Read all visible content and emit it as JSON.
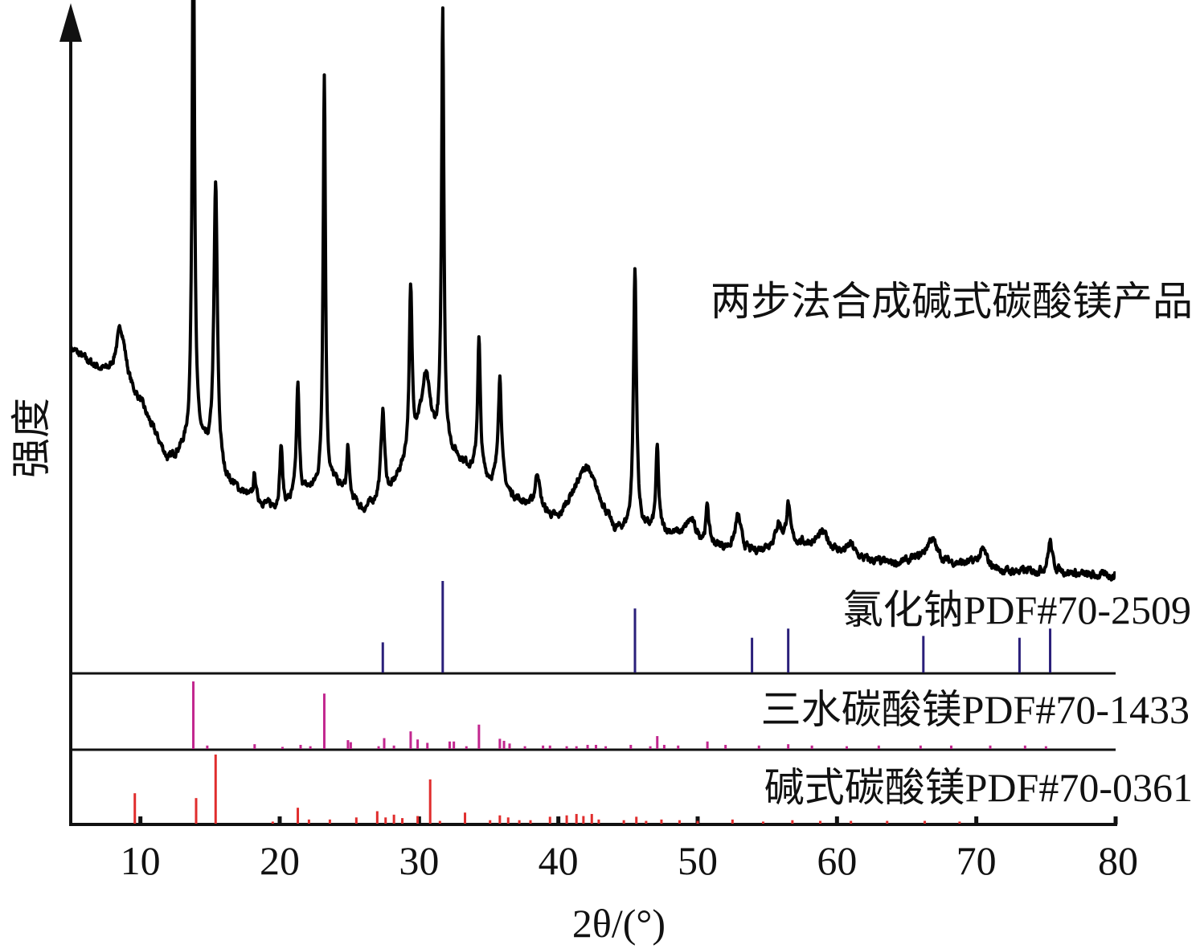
{
  "chart_data": {
    "type": "line",
    "xlabel": "2θ/(°)",
    "ylabel": "强度",
    "xlim": [
      5,
      80
    ],
    "x_ticks": [
      "10",
      "20",
      "30",
      "40",
      "50",
      "60",
      "70",
      "80"
    ],
    "grid": false,
    "colors": {
      "axis": "#111111",
      "product": "#000000",
      "nacl": "#2a1f7a",
      "trihydrate": "#c2278f",
      "basic": "#e02d2d"
    },
    "product": {
      "name": "两步法合成碱式碳酸镁产品",
      "baseline": [
        [
          5,
          60
        ],
        [
          7,
          54
        ],
        [
          10,
          45
        ],
        [
          12,
          30
        ],
        [
          14,
          36
        ],
        [
          16,
          25
        ],
        [
          18,
          20
        ],
        [
          20,
          17
        ],
        [
          22,
          22
        ],
        [
          24,
          24
        ],
        [
          26,
          17
        ],
        [
          28,
          22
        ],
        [
          30,
          37
        ],
        [
          32,
          33
        ],
        [
          34,
          27
        ],
        [
          36,
          22
        ],
        [
          38,
          18
        ],
        [
          40,
          15
        ],
        [
          42,
          29
        ],
        [
          44,
          12
        ],
        [
          46,
          12
        ],
        [
          48,
          11
        ],
        [
          50,
          9
        ],
        [
          52,
          7
        ],
        [
          54,
          6
        ],
        [
          56,
          9
        ],
        [
          58,
          8
        ],
        [
          60,
          6
        ],
        [
          62,
          4
        ],
        [
          64,
          3
        ],
        [
          66,
          4
        ],
        [
          68,
          3
        ],
        [
          70,
          3
        ],
        [
          72,
          1
        ],
        [
          74,
          1
        ],
        [
          76,
          1
        ],
        [
          78,
          0
        ],
        [
          80,
          0
        ]
      ],
      "peaks": [
        {
          "x": 8.6,
          "h": 16,
          "w": 0.45
        },
        {
          "x": 13.8,
          "h": 147,
          "w": 0.1
        },
        {
          "x": 15.4,
          "h": 75,
          "w": 0.15
        },
        {
          "x": 18.2,
          "h": 7,
          "w": 0.1
        },
        {
          "x": 20.1,
          "h": 17,
          "w": 0.12
        },
        {
          "x": 21.3,
          "h": 30,
          "w": 0.12
        },
        {
          "x": 23.2,
          "h": 110,
          "w": 0.1
        },
        {
          "x": 24.9,
          "h": 13,
          "w": 0.1
        },
        {
          "x": 27.4,
          "h": 23,
          "w": 0.15
        },
        {
          "x": 29.4,
          "h": 42,
          "w": 0.12
        },
        {
          "x": 30.5,
          "h": 16,
          "w": 0.35
        },
        {
          "x": 31.7,
          "h": 115,
          "w": 0.1
        },
        {
          "x": 34.3,
          "h": 36,
          "w": 0.12
        },
        {
          "x": 35.8,
          "h": 30,
          "w": 0.15
        },
        {
          "x": 38.5,
          "h": 10,
          "w": 0.2
        },
        {
          "x": 45.5,
          "h": 69,
          "w": 0.13
        },
        {
          "x": 47.1,
          "h": 22,
          "w": 0.12
        },
        {
          "x": 49.5,
          "h": 5,
          "w": 0.4
        },
        {
          "x": 50.7,
          "h": 10,
          "w": 0.12
        },
        {
          "x": 52.9,
          "h": 9,
          "w": 0.25
        },
        {
          "x": 55.8,
          "h": 5,
          "w": 0.2
        },
        {
          "x": 56.5,
          "h": 10,
          "w": 0.15
        },
        {
          "x": 59.0,
          "h": 4,
          "w": 0.5
        },
        {
          "x": 61.0,
          "h": 3,
          "w": 0.3
        },
        {
          "x": 66.8,
          "h": 6,
          "w": 0.45
        },
        {
          "x": 70.5,
          "h": 4,
          "w": 0.3
        },
        {
          "x": 75.3,
          "h": 8,
          "w": 0.18
        }
      ]
    },
    "reference_patterns": [
      {
        "name": "氯化钠PDF#70-2509",
        "peaks": [
          [
            27.4,
            33
          ],
          [
            31.7,
            100
          ],
          [
            45.5,
            70
          ],
          [
            53.9,
            38
          ],
          [
            56.5,
            48
          ],
          [
            66.2,
            40
          ],
          [
            73.1,
            38
          ],
          [
            75.3,
            48
          ]
        ]
      },
      {
        "name": "三水碳酸镁PDF#70-1433",
        "peaks": [
          [
            13.8,
            100
          ],
          [
            14.8,
            5
          ],
          [
            18.2,
            7
          ],
          [
            20.2,
            3
          ],
          [
            21.5,
            6
          ],
          [
            22.2,
            4
          ],
          [
            23.2,
            82
          ],
          [
            24.9,
            13
          ],
          [
            25.1,
            10
          ],
          [
            27.1,
            4
          ],
          [
            27.5,
            16
          ],
          [
            28.2,
            5
          ],
          [
            29.4,
            26
          ],
          [
            29.9,
            14
          ],
          [
            30.6,
            9
          ],
          [
            32.2,
            11
          ],
          [
            32.5,
            11
          ],
          [
            33.4,
            4
          ],
          [
            34.3,
            36
          ],
          [
            35.8,
            15
          ],
          [
            36.1,
            12
          ],
          [
            36.5,
            8
          ],
          [
            37.6,
            4
          ],
          [
            38.9,
            5
          ],
          [
            39.4,
            5
          ],
          [
            40.6,
            4
          ],
          [
            41.3,
            4
          ],
          [
            42.1,
            6
          ],
          [
            42.7,
            6
          ],
          [
            43.4,
            4
          ],
          [
            45.2,
            6
          ],
          [
            46.6,
            4
          ],
          [
            47.1,
            19
          ],
          [
            47.6,
            6
          ],
          [
            48.6,
            5
          ],
          [
            50.7,
            11
          ],
          [
            52.0,
            6
          ],
          [
            54.4,
            5
          ],
          [
            56.5,
            7
          ],
          [
            58.2,
            5
          ],
          [
            60.7,
            4
          ],
          [
            63.0,
            5
          ],
          [
            66.0,
            5
          ],
          [
            68.2,
            5
          ],
          [
            71.0,
            5
          ],
          [
            73.5,
            5
          ],
          [
            75.0,
            4
          ]
        ]
      },
      {
        "name": "碱式碳酸镁PDF#70-0361",
        "peaks": [
          [
            9.6,
            44
          ],
          [
            14.0,
            37
          ],
          [
            15.4,
            100
          ],
          [
            19.5,
            3
          ],
          [
            21.3,
            23
          ],
          [
            22.1,
            6
          ],
          [
            23.6,
            6
          ],
          [
            25.5,
            9
          ],
          [
            27.0,
            18
          ],
          [
            27.6,
            9
          ],
          [
            28.2,
            13
          ],
          [
            28.8,
            8
          ],
          [
            29.9,
            11
          ],
          [
            30.8,
            64
          ],
          [
            31.5,
            4
          ],
          [
            33.3,
            16
          ],
          [
            35.1,
            5
          ],
          [
            35.8,
            12
          ],
          [
            36.4,
            9
          ],
          [
            37.2,
            5
          ],
          [
            38.0,
            5
          ],
          [
            39.4,
            10
          ],
          [
            40.6,
            12
          ],
          [
            41.3,
            14
          ],
          [
            41.8,
            11
          ],
          [
            42.4,
            14
          ],
          [
            42.9,
            6
          ],
          [
            44.7,
            5
          ],
          [
            45.6,
            10
          ],
          [
            46.3,
            4
          ],
          [
            47.4,
            6
          ],
          [
            48.7,
            5
          ],
          [
            50.0,
            4
          ],
          [
            52.5,
            6
          ],
          [
            54.7,
            3
          ],
          [
            56.8,
            5
          ],
          [
            58.8,
            4
          ],
          [
            61.0,
            4
          ],
          [
            63.6,
            4
          ],
          [
            66.3,
            4
          ],
          [
            68.8,
            3
          ]
        ]
      }
    ]
  }
}
